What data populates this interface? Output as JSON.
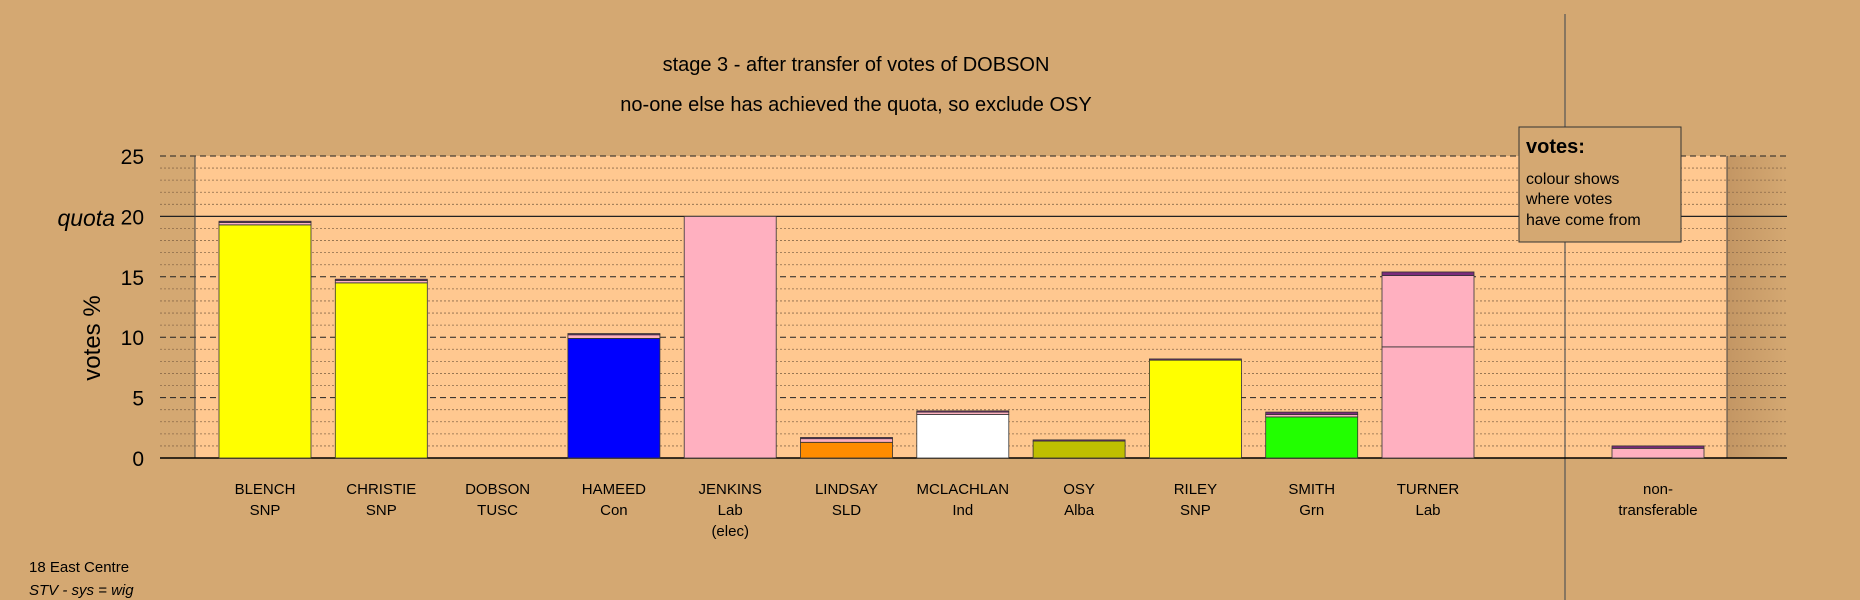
{
  "chart_data": {
    "type": "bar",
    "stacked": true,
    "title": "stage 3 - after transfer of votes of DOBSON",
    "subtitle": "no-one else has achieved the quota, so exclude OSY",
    "ylabel": "votes %",
    "quota_label": "quota",
    "quota": 20,
    "ylim": [
      0,
      25
    ],
    "yticks": [
      0,
      5,
      10,
      15,
      20,
      25
    ],
    "candidates": [
      {
        "name": "BLENCH",
        "party": "SNP",
        "note": "",
        "segments": [
          {
            "value": 19.3,
            "color": "#ffff00"
          },
          {
            "value": 0.2,
            "color": "#ffb0c0"
          },
          {
            "value": 0.1,
            "color": "#7b2b7b"
          }
        ]
      },
      {
        "name": "CHRISTIE",
        "party": "SNP",
        "note": "",
        "segments": [
          {
            "value": 14.5,
            "color": "#ffff00"
          },
          {
            "value": 0.2,
            "color": "#ffb0c0"
          },
          {
            "value": 0.1,
            "color": "#7b2b7b"
          }
        ]
      },
      {
        "name": "DOBSON",
        "party": "TUSC",
        "note": "",
        "segments": []
      },
      {
        "name": "HAMEED",
        "party": "Con",
        "note": "",
        "segments": [
          {
            "value": 9.9,
            "color": "#0000ff"
          },
          {
            "value": 0.3,
            "color": "#ffb0c0"
          },
          {
            "value": 0.1,
            "color": "#7b2b7b"
          }
        ]
      },
      {
        "name": "JENKINS",
        "party": "Lab",
        "note": "(elec)",
        "segments": [
          {
            "value": 20.0,
            "color": "#ffb0c0"
          }
        ]
      },
      {
        "name": "LINDSAY",
        "party": "SLD",
        "note": "",
        "segments": [
          {
            "value": 1.3,
            "color": "#ff8c00"
          },
          {
            "value": 0.3,
            "color": "#ffb0c0"
          },
          {
            "value": 0.1,
            "color": "#7b2b7b"
          }
        ]
      },
      {
        "name": "MCLACHLAN",
        "party": "Ind",
        "note": "",
        "segments": [
          {
            "value": 3.6,
            "color": "#ffffff"
          },
          {
            "value": 0.2,
            "color": "#ffb0c0"
          },
          {
            "value": 0.1,
            "color": "#7b2b7b"
          }
        ]
      },
      {
        "name": "OSY",
        "party": "Alba",
        "note": "",
        "segments": [
          {
            "value": 1.4,
            "color": "#bfbf00"
          },
          {
            "value": 0.1,
            "color": "#7b2b7b"
          }
        ]
      },
      {
        "name": "RILEY",
        "party": "SNP",
        "note": "",
        "segments": [
          {
            "value": 8.1,
            "color": "#ffff00"
          },
          {
            "value": 0.1,
            "color": "#7b2b7b"
          }
        ]
      },
      {
        "name": "SMITH",
        "party": "Grn",
        "note": "",
        "segments": [
          {
            "value": 3.4,
            "color": "#22ff00"
          },
          {
            "value": 0.2,
            "color": "#ffb0c0"
          },
          {
            "value": 0.2,
            "color": "#7b2b7b"
          }
        ]
      },
      {
        "name": "TURNER",
        "party": "Lab",
        "note": "",
        "segments": [
          {
            "value": 9.2,
            "color": "#ffb0c0"
          },
          {
            "value": 5.9,
            "color": "#ffb0c0"
          },
          {
            "value": 0.3,
            "color": "#7b2b7b"
          }
        ]
      }
    ],
    "non_transferable": {
      "label_line1": "non-",
      "label_line2": "transferable",
      "segments": [
        {
          "value": 0.8,
          "color": "#ffb0c0"
        },
        {
          "value": 0.2,
          "color": "#7b2b7b"
        }
      ]
    },
    "legend": {
      "title": "votes:",
      "lines": [
        "colour shows",
        "where votes",
        "have come from"
      ]
    },
    "grid": true
  },
  "footer": {
    "ward": "18 East Centre",
    "system": "STV - sys = wig"
  },
  "colors": {
    "background": "#d4a872",
    "plot_area": "#ffc890",
    "side_panel": "#d4a872"
  }
}
